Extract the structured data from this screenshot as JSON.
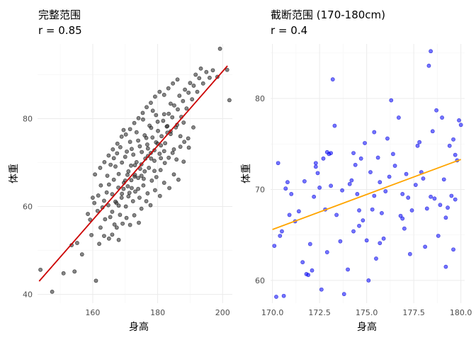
{
  "chart_data": [
    {
      "type": "scatter",
      "title": "完整范围",
      "subtitle": "r = 0.85",
      "xlabel": "身高",
      "ylabel": "体重",
      "xlim": [
        143,
        203
      ],
      "ylim": [
        38,
        97
      ],
      "x_major_ticks": [
        160,
        180,
        200
      ],
      "x_minor_ticks": [
        150,
        170,
        190
      ],
      "y_major_ticks": [
        40,
        60,
        80
      ],
      "y_minor_ticks": [
        50,
        70,
        90
      ],
      "x_tick_labels": [
        "160",
        "180",
        "200"
      ],
      "y_tick_labels": [
        "40",
        "60",
        "80"
      ],
      "point_color": "#333333",
      "line_color": "#cc0000",
      "fit_line": [
        [
          143.5,
          43.0
        ],
        [
          201.5,
          92.0
        ]
      ],
      "points": [
        [
          143.9,
          45.6
        ],
        [
          147.5,
          40.6
        ],
        [
          151.0,
          44.8
        ],
        [
          153.5,
          51.2
        ],
        [
          155.2,
          51.7
        ],
        [
          154.4,
          45.2
        ],
        [
          156.7,
          49.1
        ],
        [
          159.6,
          53.5
        ],
        [
          161.0,
          43.1
        ],
        [
          160.0,
          62.0
        ],
        [
          162.4,
          55.2
        ],
        [
          161.7,
          62.5
        ],
        [
          163.0,
          59.8
        ],
        [
          163.8,
          57.1
        ],
        [
          164.8,
          60.3
        ],
        [
          164.3,
          63.2
        ],
        [
          165.4,
          57.6
        ],
        [
          166.0,
          62.8
        ],
        [
          166.7,
          55.9
        ],
        [
          167.3,
          60.8
        ],
        [
          167.9,
          64.3
        ],
        [
          168.4,
          58.1
        ],
        [
          168.9,
          62.0
        ],
        [
          169.6,
          65.4
        ],
        [
          170.2,
          60.0
        ],
        [
          170.7,
          67.2
        ],
        [
          171.3,
          63.1
        ],
        [
          171.8,
          69.3
        ],
        [
          172.4,
          61.2
        ],
        [
          172.9,
          66.8
        ],
        [
          173.5,
          70.1
        ],
        [
          174.0,
          64.0
        ],
        [
          174.6,
          68.6
        ],
        [
          175.1,
          72.4
        ],
        [
          175.7,
          66.3
        ],
        [
          176.2,
          70.9
        ],
        [
          176.8,
          74.1
        ],
        [
          177.3,
          68.8
        ],
        [
          177.9,
          72.2
        ],
        [
          178.4,
          75.7
        ],
        [
          179.0,
          70.4
        ],
        [
          179.5,
          74.6
        ],
        [
          180.1,
          77.2
        ],
        [
          180.6,
          72.0
        ],
        [
          181.2,
          76.0
        ],
        [
          181.7,
          79.5
        ],
        [
          182.3,
          74.4
        ],
        [
          182.8,
          78.2
        ],
        [
          183.4,
          81.1
        ],
        [
          184.0,
          76.5
        ],
        [
          184.5,
          80.3
        ],
        [
          185.1,
          83.0
        ],
        [
          185.6,
          78.0
        ],
        [
          186.2,
          82.1
        ],
        [
          186.7,
          85.2
        ],
        [
          187.3,
          80.4
        ],
        [
          187.8,
          84.0
        ],
        [
          188.4,
          86.6
        ],
        [
          188.9,
          82.3
        ],
        [
          189.5,
          85.9
        ],
        [
          190.0,
          88.1
        ],
        [
          190.6,
          84.4
        ],
        [
          191.1,
          87.5
        ],
        [
          191.7,
          90.0
        ],
        [
          192.2,
          86.1
        ],
        [
          192.8,
          89.2
        ],
        [
          193.3,
          91.4
        ],
        [
          194.0,
          88.0
        ],
        [
          195.0,
          90.6
        ],
        [
          196.0,
          89.3
        ],
        [
          197.0,
          91.0
        ],
        [
          198.4,
          89.5
        ],
        [
          199.2,
          95.9
        ],
        [
          201.4,
          91.1
        ],
        [
          202.1,
          84.2
        ],
        [
          158.5,
          58.3
        ],
        [
          159.2,
          57.0
        ],
        [
          162.0,
          51.5
        ],
        [
          163.5,
          53.3
        ],
        [
          165.0,
          52.7
        ],
        [
          166.0,
          53.6
        ],
        [
          167.4,
          55.2
        ],
        [
          168.0,
          52.4
        ],
        [
          169.2,
          56.1
        ],
        [
          170.4,
          57.4
        ],
        [
          171.5,
          55.8
        ],
        [
          172.8,
          58.0
        ],
        [
          174.2,
          56.3
        ],
        [
          175.0,
          59.5
        ],
        [
          176.5,
          61.2
        ],
        [
          177.8,
          60.3
        ],
        [
          179.2,
          63.7
        ],
        [
          180.7,
          62.4
        ],
        [
          182.0,
          65.4
        ],
        [
          183.6,
          64.2
        ],
        [
          185.0,
          67.3
        ],
        [
          186.4,
          66.1
        ],
        [
          188.0,
          70.2
        ],
        [
          189.6,
          73.4
        ],
        [
          191.0,
          78.0
        ],
        [
          160.7,
          67.3
        ],
        [
          162.3,
          68.8
        ],
        [
          163.6,
          70.1
        ],
        [
          164.9,
          71.6
        ],
        [
          166.2,
          73.0
        ],
        [
          167.6,
          74.3
        ],
        [
          168.9,
          75.9
        ],
        [
          170.2,
          76.4
        ],
        [
          171.5,
          77.6
        ],
        [
          172.8,
          79.0
        ],
        [
          174.1,
          80.1
        ],
        [
          175.4,
          81.3
        ],
        [
          176.6,
          82.6
        ],
        [
          177.9,
          83.6
        ],
        [
          179.2,
          85.0
        ],
        [
          180.6,
          86.1
        ],
        [
          182.0,
          85.4
        ],
        [
          183.3,
          86.9
        ],
        [
          184.7,
          88.0
        ],
        [
          186.1,
          88.9
        ],
        [
          169.0,
          70.0
        ],
        [
          170.0,
          71.3
        ],
        [
          171.0,
          68.0
        ],
        [
          172.0,
          73.1
        ],
        [
          173.0,
          69.4
        ],
        [
          174.0,
          75.0
        ],
        [
          175.0,
          67.0
        ],
        [
          176.0,
          76.2
        ],
        [
          177.0,
          71.5
        ],
        [
          178.0,
          77.9
        ],
        [
          179.0,
          68.1
        ],
        [
          180.0,
          79.3
        ],
        [
          181.0,
          73.9
        ],
        [
          182.0,
          81.0
        ],
        [
          183.0,
          76.8
        ],
        [
          184.0,
          83.4
        ],
        [
          185.0,
          73.0
        ],
        [
          186.0,
          78.6
        ],
        [
          187.0,
          76.0
        ],
        [
          188.0,
          79.1
        ],
        [
          166.5,
          66.1
        ],
        [
          167.0,
          69.1
        ],
        [
          168.0,
          67.4
        ],
        [
          169.5,
          64.0
        ],
        [
          170.8,
          64.6
        ],
        [
          171.9,
          66.0
        ],
        [
          173.1,
          63.4
        ],
        [
          174.4,
          62.0
        ],
        [
          175.6,
          64.8
        ],
        [
          176.9,
          63.0
        ],
        [
          178.2,
          65.9
        ],
        [
          179.6,
          66.7
        ],
        [
          180.9,
          68.3
        ],
        [
          182.2,
          69.9
        ],
        [
          183.4,
          71.1
        ],
        [
          184.6,
          72.2
        ],
        [
          185.8,
          70.7
        ],
        [
          187.0,
          73.6
        ],
        [
          188.2,
          74.7
        ],
        [
          189.4,
          75.5
        ],
        [
          165.0,
          65.0
        ],
        [
          166.0,
          58.8
        ],
        [
          167.0,
          61.1
        ],
        [
          168.0,
          60.2
        ],
        [
          169.0,
          62.9
        ],
        [
          170.0,
          65.9
        ],
        [
          171.0,
          62.3
        ],
        [
          172.0,
          64.2
        ],
        [
          173.0,
          67.2
        ],
        [
          174.0,
          66.5
        ],
        [
          175.0,
          69.6
        ],
        [
          176.0,
          68.0
        ],
        [
          177.0,
          73.2
        ],
        [
          178.0,
          70.9
        ],
        [
          179.0,
          72.8
        ],
        [
          180.0,
          74.3
        ],
        [
          181.0,
          71.0
        ],
        [
          182.0,
          72.6
        ],
        [
          183.0,
          78.3
        ],
        [
          184.0,
          77.1
        ],
        [
          160.5,
          60.8
        ],
        [
          161.5,
          59.0
        ],
        [
          162.5,
          64.8
        ],
        [
          163.5,
          61.3
        ],
        [
          164.5,
          67.0
        ],
        [
          165.5,
          69.5
        ],
        [
          166.5,
          71.0
        ],
        [
          167.5,
          72.1
        ],
        [
          168.5,
          73.5
        ],
        [
          169.5,
          77.4
        ],
        [
          170.5,
          72.5
        ],
        [
          171.5,
          74.7
        ],
        [
          172.5,
          71.8
        ],
        [
          173.5,
          76.9
        ],
        [
          174.5,
          73.7
        ],
        [
          175.5,
          79.8
        ],
        [
          176.5,
          75.6
        ],
        [
          177.5,
          78.4
        ],
        [
          178.5,
          81.8
        ],
        [
          179.5,
          80.8
        ]
      ]
    },
    {
      "type": "scatter",
      "title": "截断范围 (170-180cm)",
      "subtitle": "r = 0.4",
      "xlabel": "身高",
      "ylabel": "体重",
      "xlim": [
        169.9,
        180.2
      ],
      "ylim": [
        57.5,
        86.0
      ],
      "x_major_ticks": [
        170.0,
        172.5,
        175.0,
        177.5,
        180.0
      ],
      "x_minor_ticks": [
        171.25,
        173.75,
        176.25,
        178.75
      ],
      "y_major_ticks": [
        60,
        70,
        80
      ],
      "y_minor_ticks": [
        65,
        75,
        85
      ],
      "x_tick_labels": [
        "170.0",
        "172.5",
        "175.0",
        "177.5",
        "180.0"
      ],
      "y_tick_labels": [
        "60",
        "70",
        "80"
      ],
      "point_color": "#0000ff",
      "line_color": "#ffa500",
      "fit_line": [
        [
          170.0,
          65.6
        ],
        [
          180.0,
          73.3
        ]
      ],
      "points": [
        [
          170.1,
          63.8
        ],
        [
          170.2,
          58.2
        ],
        [
          170.3,
          72.9
        ],
        [
          170.4,
          64.9
        ],
        [
          170.5,
          65.4
        ],
        [
          170.6,
          58.3
        ],
        [
          170.7,
          70.1
        ],
        [
          170.8,
          70.8
        ],
        [
          171.0,
          69.5
        ],
        [
          171.2,
          66.5
        ],
        [
          171.6,
          62.0
        ],
        [
          171.8,
          60.7
        ],
        [
          171.9,
          60.6
        ],
        [
          172.0,
          64.0
        ],
        [
          172.1,
          61.1
        ],
        [
          172.2,
          69.2
        ],
        [
          172.3,
          72.5
        ],
        [
          172.4,
          71.8
        ],
        [
          172.5,
          70.2
        ],
        [
          172.6,
          59.0
        ],
        [
          172.7,
          73.4
        ],
        [
          172.8,
          67.8
        ],
        [
          172.9,
          63.1
        ],
        [
          173.0,
          73.9
        ],
        [
          173.1,
          74.0
        ],
        [
          173.2,
          82.1
        ],
        [
          173.3,
          77.0
        ],
        [
          173.4,
          67.2
        ],
        [
          173.6,
          64.3
        ],
        [
          173.8,
          58.5
        ],
        [
          174.0,
          61.2
        ],
        [
          174.1,
          70.6
        ],
        [
          174.2,
          71.0
        ],
        [
          174.3,
          74.0
        ],
        [
          174.4,
          72.7
        ],
        [
          174.5,
          69.5
        ],
        [
          174.6,
          66.0
        ],
        [
          174.7,
          73.4
        ],
        [
          174.8,
          66.6
        ],
        [
          174.9,
          75.1
        ],
        [
          175.0,
          64.4
        ],
        [
          175.1,
          60.0
        ],
        [
          175.2,
          71.9
        ],
        [
          175.3,
          67.8
        ],
        [
          175.4,
          69.3
        ],
        [
          175.5,
          62.4
        ],
        [
          175.6,
          73.5
        ],
        [
          175.7,
          70.8
        ],
        [
          175.8,
          67.4
        ],
        [
          175.9,
          64.6
        ],
        [
          176.0,
          69.8
        ],
        [
          176.1,
          75.6
        ],
        [
          176.2,
          71.4
        ],
        [
          176.3,
          79.8
        ],
        [
          176.5,
          72.6
        ],
        [
          176.7,
          77.9
        ],
        [
          176.8,
          67.1
        ],
        [
          176.9,
          69.5
        ],
        [
          177.0,
          65.7
        ],
        [
          177.1,
          71.7
        ],
        [
          177.2,
          69.1
        ],
        [
          177.3,
          62.9
        ],
        [
          177.4,
          67.7
        ],
        [
          177.6,
          70.5
        ],
        [
          177.8,
          75.2
        ],
        [
          178.0,
          71.2
        ],
        [
          178.1,
          63.7
        ],
        [
          178.2,
          67.9
        ],
        [
          178.3,
          83.6
        ],
        [
          178.4,
          85.2
        ],
        [
          178.5,
          76.4
        ],
        [
          178.6,
          69.0
        ],
        [
          178.7,
          78.7
        ],
        [
          178.8,
          64.9
        ],
        [
          178.9,
          68.3
        ],
        [
          179.0,
          77.9
        ],
        [
          179.1,
          71.1
        ],
        [
          179.2,
          66.9
        ],
        [
          179.3,
          68.0
        ],
        [
          179.5,
          69.3
        ],
        [
          179.6,
          75.5
        ],
        [
          179.7,
          73.8
        ],
        [
          179.8,
          73.2
        ],
        [
          179.9,
          77.6
        ],
        [
          179.4,
          74.8
        ],
        [
          179.6,
          63.4
        ],
        [
          179.2,
          61.5
        ],
        [
          180.0,
          77.1
        ],
        [
          175.4,
          76.3
        ],
        [
          172.9,
          74.1
        ],
        [
          171.4,
          67.6
        ],
        [
          173.7,
          69.9
        ],
        [
          174.6,
          67.7
        ],
        [
          176.4,
          73.9
        ],
        [
          177.7,
          74.8
        ],
        [
          170.9,
          67.2
        ],
        [
          172.3,
          72.9
        ],
        [
          175.7,
          64.1
        ],
        [
          178.4,
          69.2
        ],
        [
          176.9,
          66.8
        ],
        [
          174.3,
          65.4
        ],
        [
          171.7,
          70.9
        ],
        [
          173.1,
          70.4
        ],
        [
          177.9,
          71.9
        ],
        [
          179.7,
          68.9
        ]
      ]
    }
  ]
}
